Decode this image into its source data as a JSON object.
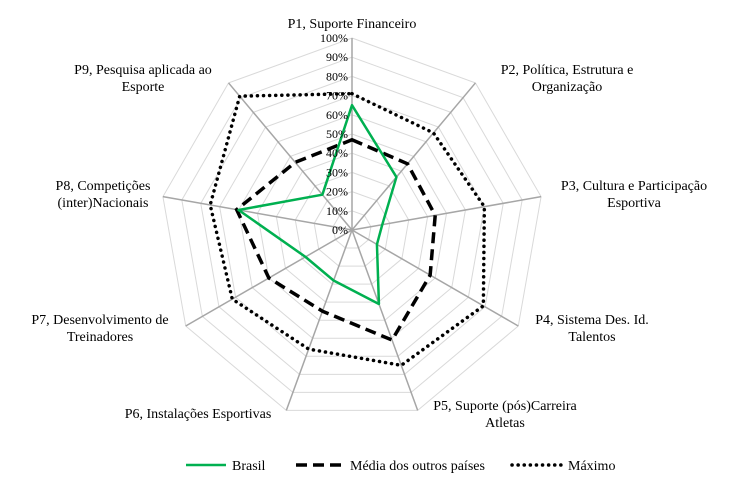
{
  "chart_data": {
    "type": "radar",
    "categories": [
      "P1, Suporte Financeiro",
      "P2, Política, Estrutura e Organização",
      "P3, Cultura e Participação Esportiva",
      "P4, Sistema Des. Id. Talentos",
      "P5, Suporte (pós)Carreira Atletas",
      "P6, Instalações Esportivas",
      "P7, Desenvolvimento de Treinadores",
      "P8, Competições (inter)Nacionais",
      "P9, Pesquisa aplicada ao Esporte"
    ],
    "category_lines": [
      [
        "P1, Suporte Financeiro"
      ],
      [
        "P2, Política, Estrutura e",
        "Organização"
      ],
      [
        "P3, Cultura e Participação",
        "Esportiva"
      ],
      [
        "P4, Sistema Des. Id.",
        "Talentos"
      ],
      [
        "P5, Suporte (pós)Carreira",
        "Atletas"
      ],
      [
        "P6, Instalações Esportivas"
      ],
      [
        "P7, Desenvolvimento de",
        "Treinadores"
      ],
      [
        "P8, Competições",
        "(inter)Nacionais"
      ],
      [
        "P9, Pesquisa aplicada ao",
        "Esporte"
      ]
    ],
    "tick_labels": [
      "0%",
      "10%",
      "20%",
      "30%",
      "40%",
      "50%",
      "60%",
      "70%",
      "80%",
      "90%",
      "100%"
    ],
    "rlim": [
      0,
      100
    ],
    "grid": true,
    "legend": "bottom",
    "series": [
      {
        "name": "Brasil",
        "values": [
          65,
          36,
          16,
          15,
          41,
          28,
          28,
          60,
          24
        ],
        "color": "#00b050",
        "style": "solid"
      },
      {
        "name": "Média dos outros países",
        "values": [
          47,
          45,
          44,
          47,
          61,
          45,
          50,
          61,
          46
        ],
        "color": "#000000",
        "style": "dashed"
      },
      {
        "name": "Máximo",
        "values": [
          71,
          66,
          70,
          79,
          75,
          66,
          72,
          75,
          91
        ],
        "color": "#000000",
        "style": "dotted"
      }
    ]
  }
}
